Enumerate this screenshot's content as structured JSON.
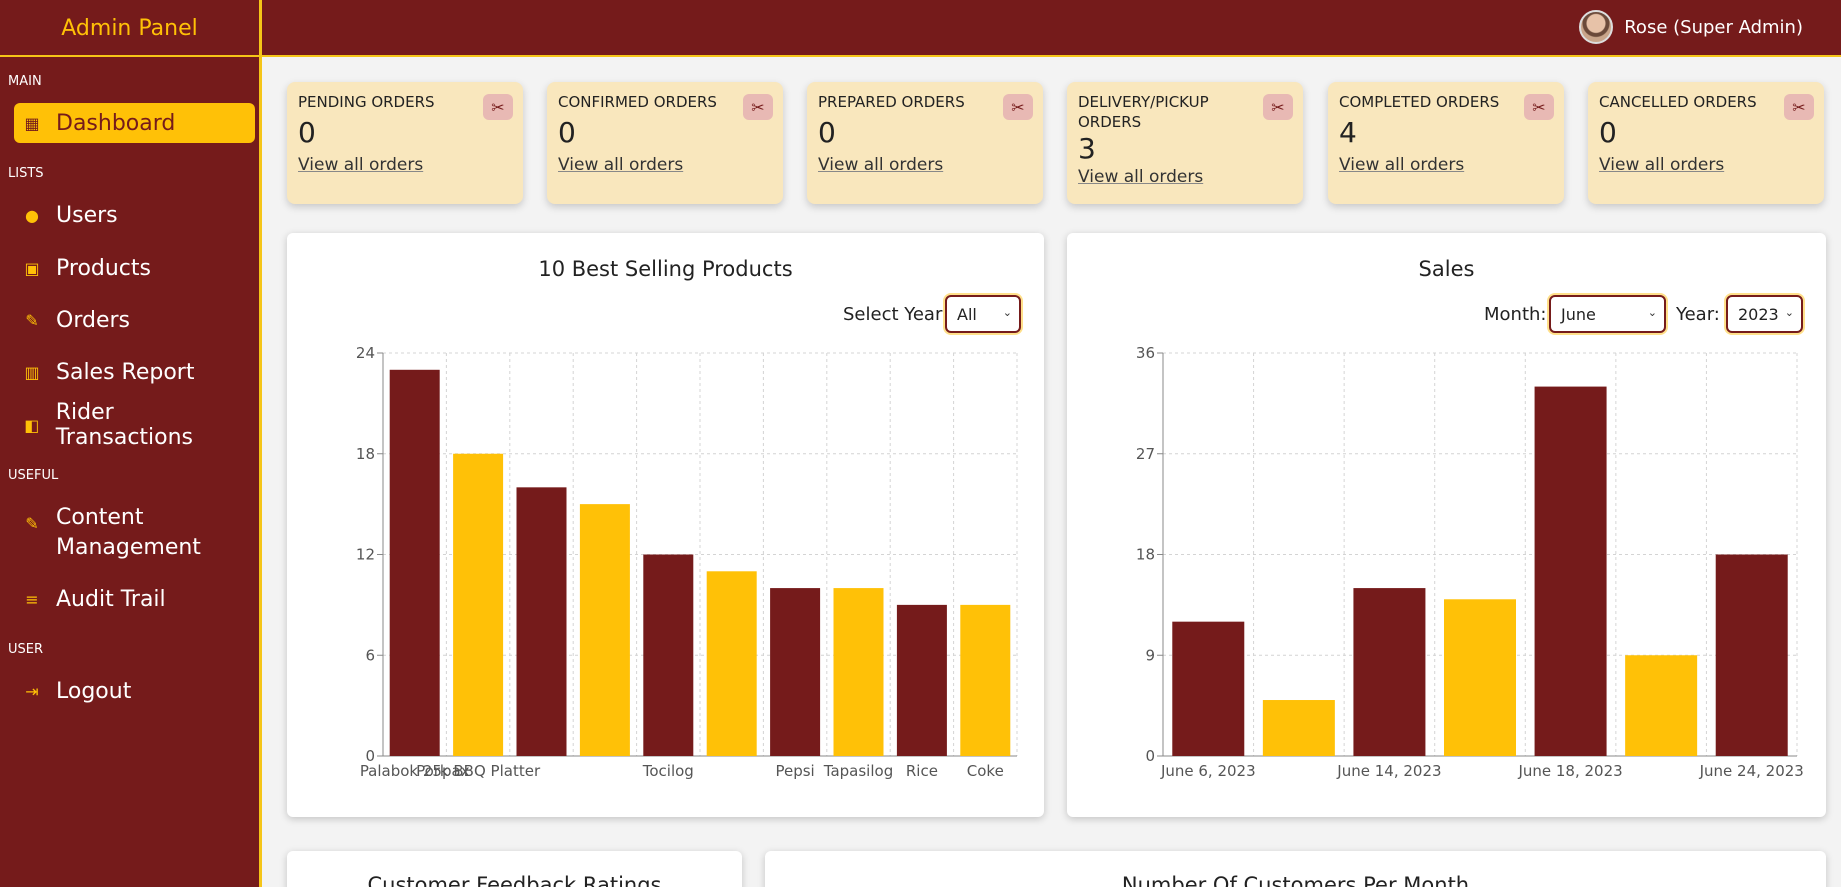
{
  "brand": "Admin Panel",
  "user": {
    "name": "Rose (Super Admin)"
  },
  "sidebar": {
    "sections": {
      "main": "MAIN",
      "lists": "LISTS",
      "useful": "USEFUL",
      "user": "USER"
    },
    "items": [
      {
        "label": "Dashboard",
        "icon": "dashboard-icon"
      },
      {
        "label": "Users",
        "icon": "user-icon"
      },
      {
        "label": "Products",
        "icon": "store-icon"
      },
      {
        "label": "Orders",
        "icon": "edit-icon"
      },
      {
        "label": "Sales Report",
        "icon": "chart-icon"
      },
      {
        "label": "Rider Transactions",
        "icon": "wallet-icon"
      },
      {
        "label": "Content Management",
        "icon": "edit-icon"
      },
      {
        "label": "Audit Trail",
        "icon": "search-list-icon"
      },
      {
        "label": "Logout",
        "icon": "logout-icon"
      }
    ]
  },
  "cards": [
    {
      "title": "PENDING ORDERS",
      "count": "0",
      "link": "View all orders"
    },
    {
      "title": "CONFIRMED ORDERS",
      "count": "0",
      "link": "View all orders"
    },
    {
      "title": "PREPARED ORDERS",
      "count": "0",
      "link": "View all orders"
    },
    {
      "title": "DELIVERY/PICKUP ORDERS",
      "count": "3",
      "link": "View all orders"
    },
    {
      "title": "COMPLETED ORDERS",
      "count": "4",
      "link": "View all orders"
    },
    {
      "title": "CANCELLED ORDERS",
      "count": "0",
      "link": "View all orders"
    }
  ],
  "best": {
    "title": "10 Best Selling Products",
    "year_label": "Select Year:",
    "year_value": "All"
  },
  "sales": {
    "title": "Sales",
    "month_label": "Month:",
    "month_value": "June",
    "year_label": "Year:",
    "year_value": "2023"
  },
  "bottom": {
    "feedback_title": "Customer Feedback Ratings",
    "customers_title": "Number Of Customers Per Month"
  },
  "colors": {
    "primary": "#751b1b",
    "accent": "#ffc107",
    "card": "#f9e7bd"
  },
  "chart_data": [
    {
      "type": "bar",
      "title": "10 Best Selling Products",
      "categories": [
        "Palabok 25pax",
        "Pork BBQ Platter",
        "",
        "",
        "Tocilog",
        "",
        "Pepsi",
        "Tapasilog",
        "Rice",
        "Coke"
      ],
      "values": [
        23,
        18,
        16,
        15,
        12,
        11,
        10,
        10,
        9,
        9
      ],
      "ylim": [
        0,
        24
      ],
      "yticks": [
        0,
        6,
        12,
        18,
        24
      ],
      "grid": true
    },
    {
      "type": "bar",
      "title": "Sales",
      "categories": [
        "June 6, 2023",
        "",
        "June 14, 2023",
        "",
        "June 18, 2023",
        "",
        "June 24, 2023"
      ],
      "values": [
        12,
        5,
        15,
        14,
        33,
        9,
        18
      ],
      "ylim": [
        0,
        36
      ],
      "yticks": [
        0,
        9,
        18,
        27,
        36
      ],
      "grid": true
    }
  ]
}
